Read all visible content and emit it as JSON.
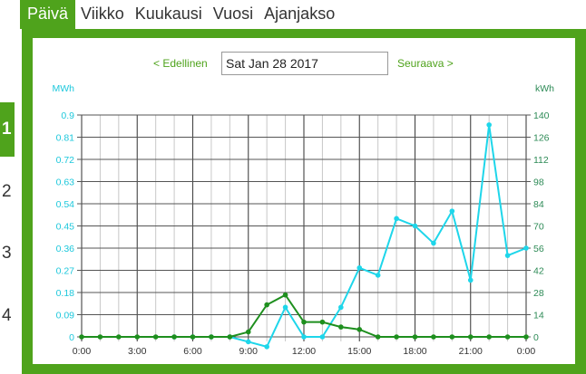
{
  "tabs": [
    {
      "label": "Päivä",
      "active": true
    },
    {
      "label": "Viikko",
      "active": false
    },
    {
      "label": "Kuukausi",
      "active": false
    },
    {
      "label": "Vuosi",
      "active": false
    },
    {
      "label": "Ajanjakso",
      "active": false
    }
  ],
  "side_nav": [
    {
      "label": "1",
      "active": true
    },
    {
      "label": "2",
      "active": false
    },
    {
      "label": "3",
      "active": false
    },
    {
      "label": "4",
      "active": false
    }
  ],
  "date_nav": {
    "prev_label": "< Edellinen",
    "date_value": "Sat Jan 28 2017",
    "next_label": "Seuraava >"
  },
  "colors": {
    "accent": "#4fa31c",
    "cyan": "#1ed6ea",
    "green_series": "#1e8f1e"
  },
  "chart_data": {
    "type": "line",
    "y_left": {
      "label": "MWh",
      "min": 0,
      "max": 0.9,
      "ticks": [
        "0",
        "0.09",
        "0.18",
        "0.27",
        "0.36",
        "0.45",
        "0.54",
        "0.63",
        "0.72",
        "0.81",
        "0.9"
      ]
    },
    "y_right": {
      "label": "kWh",
      "min": 0,
      "max": 140,
      "ticks": [
        "0",
        "14",
        "28",
        "42",
        "56",
        "70",
        "84",
        "98",
        "112",
        "126",
        "140"
      ]
    },
    "x": {
      "min": 0,
      "max": 24,
      "ticks": [
        {
          "value": 0,
          "label": "0:00"
        },
        {
          "value": 3,
          "label": "3:00"
        },
        {
          "value": 6,
          "label": "6:00"
        },
        {
          "value": 9,
          "label": "9:00"
        },
        {
          "value": 12,
          "label": "12:00"
        },
        {
          "value": 15,
          "label": "15:00"
        },
        {
          "value": 18,
          "label": "18:00"
        },
        {
          "value": 21,
          "label": "21:00"
        },
        {
          "value": 24,
          "label": "0:00"
        }
      ]
    },
    "grid": true,
    "series": [
      {
        "axis": "left",
        "color": "#1ed6ea",
        "x": [
          5,
          6,
          7,
          8,
          9,
          10,
          11,
          12,
          13,
          14,
          15,
          16,
          17,
          18,
          19,
          20,
          21,
          22,
          23,
          24
        ],
        "y": [
          0.0,
          0.0,
          0.0,
          0.0,
          -0.02,
          -0.04,
          0.12,
          0.0,
          0.0,
          0.12,
          0.28,
          0.25,
          0.48,
          0.45,
          0.38,
          0.51,
          0.23,
          0.86,
          0.33,
          0.36
        ]
      },
      {
        "axis": "left",
        "color": "#1e8f1e",
        "x": [
          0,
          1,
          2,
          3,
          4,
          5,
          6,
          7,
          8,
          9,
          10,
          11,
          12,
          13,
          14,
          15,
          16,
          17,
          18,
          19,
          20,
          21,
          22,
          23,
          24
        ],
        "y": [
          0,
          0,
          0,
          0,
          0,
          0,
          0,
          0,
          0,
          0.02,
          0.13,
          0.17,
          0.06,
          0.06,
          0.04,
          0.03,
          0,
          0,
          0,
          0,
          0,
          0,
          0,
          0,
          0
        ]
      }
    ]
  }
}
